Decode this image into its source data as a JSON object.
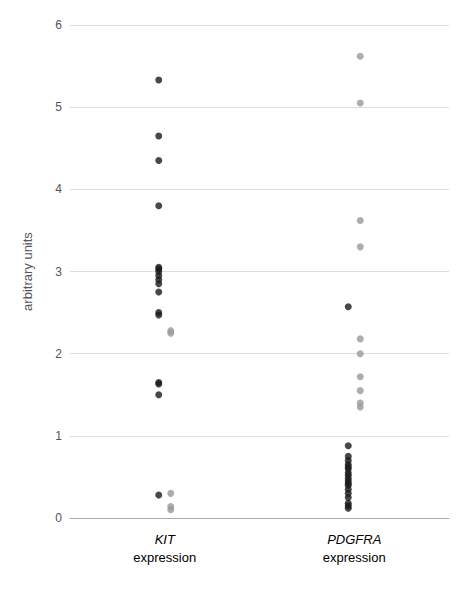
{
  "chart_data": {
    "type": "scatter",
    "categories": [
      "KIT\nexpression",
      "PDGFRA\nexpression"
    ],
    "ylabel": "arbitrary units",
    "ylim": [
      0,
      6
    ],
    "yticks": [
      0,
      1,
      2,
      3,
      4,
      5,
      6
    ],
    "grid": true,
    "series": [
      {
        "color": "#1a1a1a",
        "values": [
          [
            5.33,
            4.65,
            4.35,
            3.8,
            3.05,
            3.03,
            3.0,
            2.95,
            2.9,
            2.85,
            2.75,
            2.5,
            2.47,
            1.65,
            1.63,
            1.5,
            0.28
          ],
          [
            2.57,
            0.88,
            0.75,
            0.7,
            0.65,
            0.62,
            0.6,
            0.55,
            0.52,
            0.48,
            0.45,
            0.42,
            0.4,
            0.35,
            0.3,
            0.25,
            0.18,
            0.15,
            0.12
          ]
        ]
      },
      {
        "color": "#999999",
        "values": [
          [
            2.28,
            2.25,
            0.3,
            0.14,
            0.1
          ],
          [
            5.62,
            5.05,
            3.62,
            3.3,
            2.18,
            2.0,
            1.72,
            1.55,
            1.4,
            1.35
          ]
        ]
      }
    ]
  }
}
